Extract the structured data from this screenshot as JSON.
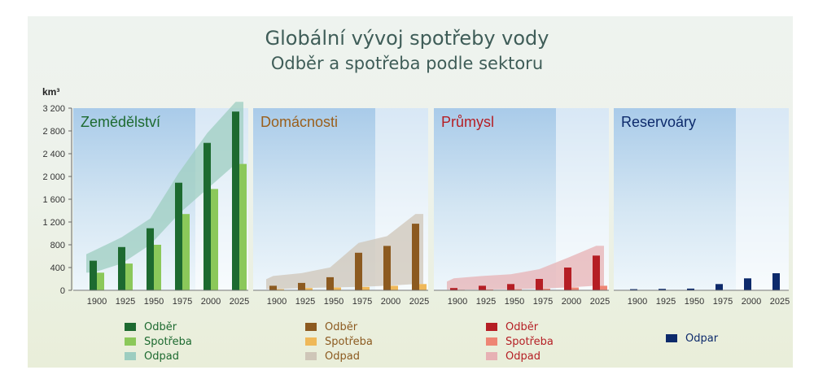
{
  "title": "Globální vývoj spotřeby vody",
  "subtitle": "Odběr a spotřeba podle sektoru",
  "colors": {
    "agri": [
      "#1d6a30",
      "#8bc85a",
      "#9dcdc0"
    ],
    "dom": [
      "#8c5a20",
      "#efb859",
      "#cfc6b8"
    ],
    "ind": [
      "#b51e24",
      "#ee8574",
      "#e7b1b4"
    ],
    "res": [
      "#0d2a6b"
    ]
  },
  "chart_data": {
    "type": "bar",
    "ylabel": "km³",
    "yticks": [
      "0",
      "400",
      "800",
      "1 200",
      "1 600",
      "2 000",
      "2 400",
      "2 800",
      "3 200"
    ],
    "ylim": [
      0,
      3200
    ],
    "categories": [
      "1900",
      "1925",
      "1950",
      "1975",
      "2000",
      "2025"
    ],
    "panels": [
      {
        "name": "Zemědělství",
        "name_color": "#1d6a30",
        "series": [
          {
            "name": "Odběr",
            "values": [
              520,
              760,
              1090,
              1890,
              2590,
              3140
            ]
          },
          {
            "name": "Spotřeba",
            "values": [
              310,
              470,
              800,
              1340,
              1780,
              2220
            ]
          },
          {
            "name": "Odpad"
          }
        ]
      },
      {
        "name": "Domácnosti",
        "name_color": "#9a5f1c",
        "series": [
          {
            "name": "Odběr",
            "values": [
              80,
              130,
              230,
              660,
              780,
              1170
            ]
          },
          {
            "name": "Spotřeba",
            "values": [
              20,
              40,
              50,
              60,
              80,
              110
            ]
          },
          {
            "name": "Odpad"
          }
        ]
      },
      {
        "name": "Průmysl",
        "name_color": "#b51e24",
        "series": [
          {
            "name": "Odběr",
            "values": [
              40,
              80,
              110,
              200,
              400,
              610
            ]
          },
          {
            "name": "Spotřeba",
            "values": [
              10,
              15,
              20,
              30,
              50,
              80
            ]
          },
          {
            "name": "Odpad"
          }
        ]
      },
      {
        "name": "Reservoáry",
        "name_color": "#0d2a6b",
        "series": [
          {
            "name": "Odpar",
            "values": [
              20,
              25,
              30,
              110,
              210,
              300
            ]
          }
        ]
      }
    ]
  }
}
